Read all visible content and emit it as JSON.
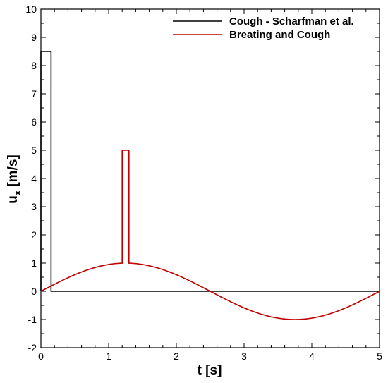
{
  "chart_data": {
    "type": "line",
    "title": "",
    "xlabel": "t [s]",
    "ylabel": {
      "base": "u",
      "sub": "x",
      "rest": " [m/s]"
    },
    "xlim": [
      0,
      5
    ],
    "ylim": [
      -2,
      10
    ],
    "xticks": [
      0,
      1,
      2,
      3,
      4,
      5
    ],
    "yticks": [
      -2,
      -1,
      0,
      1,
      2,
      3,
      4,
      5,
      6,
      7,
      8,
      9,
      10
    ],
    "grid": false,
    "legend_position": "top-right",
    "series": [
      {
        "name": "Cough - Scharfman et al.",
        "color": "#000000",
        "x": [
          0,
          0.0001,
          0.15,
          0.1501,
          5
        ],
        "y": [
          0,
          8.5,
          8.5,
          0,
          0
        ]
      },
      {
        "name": "Breating and Cough",
        "color": "#c00000",
        "x": [
          0,
          0.25,
          0.5,
          0.75,
          1.0,
          1.2,
          1.2001,
          1.3,
          1.3001,
          1.5,
          1.75,
          2.0,
          2.25,
          2.5,
          2.75,
          3.0,
          3.25,
          3.5,
          3.75,
          4.0,
          4.25,
          4.5,
          4.75,
          5.0
        ],
        "y": [
          0,
          0.309,
          0.588,
          0.809,
          0.951,
          0.995,
          5.0,
          5.0,
          0.999,
          0.951,
          0.809,
          0.588,
          0.309,
          0,
          -0.309,
          -0.588,
          -0.809,
          -0.951,
          -1.0,
          -0.951,
          -0.809,
          -0.588,
          -0.309,
          0
        ]
      }
    ]
  }
}
